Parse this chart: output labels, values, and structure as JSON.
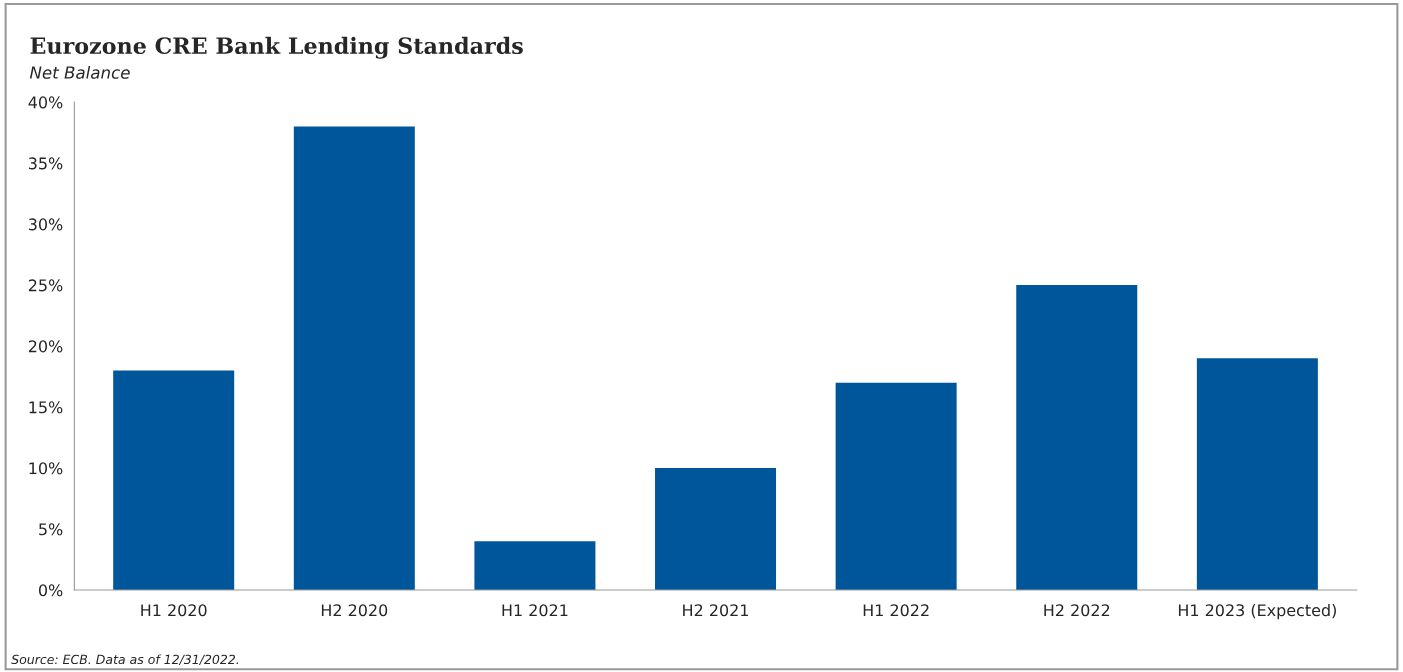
{
  "chart_data": {
    "type": "bar",
    "title": "Eurozone CRE Bank Lending Standards",
    "subtitle": "Net Balance",
    "categories": [
      "H1 2020",
      "H2 2020",
      "H1 2021",
      "H2 2021",
      "H1 2022",
      "H2 2022",
      "H1 2023 (Expected)"
    ],
    "values": [
      18,
      38,
      4,
      10,
      17,
      25,
      19
    ],
    "color": "#00569b",
    "ylim": [
      0,
      40
    ],
    "yticks": [
      {
        "value": 0,
        "label": "0%"
      },
      {
        "value": 5,
        "label": "5%"
      },
      {
        "value": 10,
        "label": "10%"
      },
      {
        "value": 15,
        "label": "15%"
      },
      {
        "value": 20,
        "label": "20%"
      },
      {
        "value": 25,
        "label": "25%"
      },
      {
        "value": 30,
        "label": "30%"
      },
      {
        "value": 35,
        "label": "35%"
      },
      {
        "value": 40,
        "label": "40%"
      }
    ],
    "grid": false,
    "annotations": [
      "Source: ECB. Data as of 12/31/2022."
    ]
  }
}
